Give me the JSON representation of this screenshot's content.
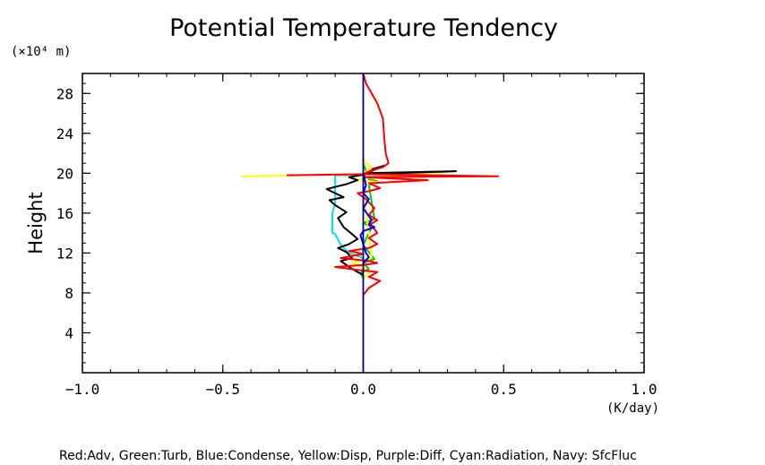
{
  "chart_data": {
    "type": "line",
    "title": "Potential Temperature Tendency",
    "ylabel": "Height",
    "y_unit": "(×10⁴ m)",
    "x_unit": "(K/day)",
    "xlim": [
      -1.0,
      1.0
    ],
    "ylim": [
      0,
      30
    ],
    "x_ticks": [
      -1.0,
      -0.5,
      0.0,
      0.5,
      1.0
    ],
    "x_tick_labels": [
      "−1.0",
      "−0.5",
      "0.0",
      "0.5",
      "1.0"
    ],
    "y_ticks": [
      4,
      8,
      12,
      16,
      20,
      24,
      28
    ],
    "y_tick_labels": [
      "4",
      "8",
      "12",
      "16",
      "20",
      "24",
      "28"
    ],
    "zero_line": 0.0,
    "legend_text": "Red:Adv, Green:Turb, Blue:Condense, Yellow:Disp, Purple:Diff, Cyan:Radiation, Navy: SfcFluc",
    "series": [
      {
        "name": "Cyan",
        "color": "#00e5e5",
        "x": [
          0,
          -0.1,
          -0.1,
          -0.1,
          -0.11,
          -0.11,
          -0.1,
          -0.08,
          -0.05,
          0
        ],
        "y": [
          19.8,
          19.8,
          19.2,
          17.0,
          16.0,
          14.0,
          13.9,
          12.8,
          12.0,
          11.5
        ]
      },
      {
        "name": "Green",
        "color": "#00cc00",
        "x": [
          0,
          0.01,
          0,
          0.02,
          0.05,
          0.02,
          0.04,
          0,
          0.03,
          0.01,
          0,
          0.04,
          0,
          0.02,
          -0.01,
          0
        ],
        "y": [
          21.0,
          20.2,
          19.8,
          19.4,
          19.2,
          18.8,
          15.4,
          15.0,
          14.6,
          13.4,
          12.8,
          11.4,
          11.0,
          10.4,
          10.0,
          9.5
        ]
      },
      {
        "name": "Yellow",
        "color": "#ffff00",
        "x": [
          0,
          0.01,
          0.03,
          0.0,
          -0.43,
          0.0,
          0.33,
          0.03,
          -0.02,
          0.06,
          0.0,
          0.03,
          -0.04,
          0.0,
          0.02,
          0.0
        ],
        "y": [
          21.5,
          21.0,
          20.6,
          19.9,
          19.7,
          19.9,
          20.2,
          19.6,
          19.3,
          19.1,
          18.8,
          11.5,
          11.0,
          10.5,
          10.0,
          9.5
        ]
      },
      {
        "name": "Black",
        "color": "#000000",
        "x": [
          0.03,
          0.08,
          0.01,
          0.33,
          0.01,
          -0.05,
          -0.02,
          -0.06,
          -0.09,
          -0.13,
          -0.1,
          -0.07,
          -0.12,
          -0.1,
          -0.06,
          -0.09,
          -0.07,
          -0.04,
          -0.02,
          -0.05,
          -0.09,
          -0.06,
          -0.04,
          -0.08,
          -0.05,
          -0.02,
          0.0
        ],
        "y": [
          20.4,
          20.8,
          20.0,
          20.2,
          19.9,
          19.6,
          19.3,
          18.9,
          18.7,
          18.4,
          18.0,
          17.6,
          17.3,
          16.8,
          16.1,
          15.5,
          14.6,
          13.9,
          13.4,
          12.9,
          12.5,
          12.1,
          11.5,
          11.2,
          10.6,
          10.1,
          9.8
        ]
      },
      {
        "name": "Red",
        "color": "#ff0000",
        "x": [
          0.0,
          0.01,
          0.03,
          0.05,
          0.07,
          0.075,
          0.08,
          0.09,
          0.07,
          0.03,
          0.0,
          -0.27,
          0.0,
          0.48,
          0.0,
          0.23,
          0.02,
          0.06,
          0.02,
          -0.02,
          0.01,
          0.04,
          0.02,
          0.05,
          0.02,
          0.04,
          0.05,
          0.02,
          0.05,
          0.02,
          -0.05,
          0.0,
          -0.08,
          0.02,
          0.05,
          0.0,
          -0.1,
          -0.02,
          0.05,
          0.02,
          0.06,
          0.02,
          0.0
        ],
        "y": [
          30.0,
          29.0,
          28.0,
          27.0,
          25.5,
          23.5,
          22.0,
          21.0,
          20.6,
          20.3,
          19.9,
          19.8,
          19.9,
          19.7,
          19.6,
          19.3,
          19.0,
          18.5,
          18.2,
          18.0,
          17.4,
          16.5,
          15.8,
          15.3,
          14.8,
          14.4,
          14.0,
          13.5,
          12.9,
          12.5,
          12.2,
          11.9,
          11.5,
          11.2,
          11.0,
          10.8,
          10.6,
          10.3,
          10.1,
          9.6,
          9.2,
          8.5,
          7.8
        ]
      },
      {
        "name": "Blue",
        "color": "#0000ff",
        "x": [
          0,
          0.01,
          0,
          0.02,
          0,
          0.03,
          0.02,
          0.04,
          0.0,
          -0.01,
          0.01,
          0.02,
          0.0
        ],
        "y": [
          20.0,
          18.8,
          18.0,
          17.4,
          16.5,
          15.3,
          14.9,
          14.6,
          14.2,
          13.8,
          12.0,
          11.6,
          11.0
        ]
      },
      {
        "name": "Navy",
        "color": "#000080",
        "x": [
          0,
          0
        ],
        "y": [
          0,
          30
        ]
      }
    ]
  }
}
